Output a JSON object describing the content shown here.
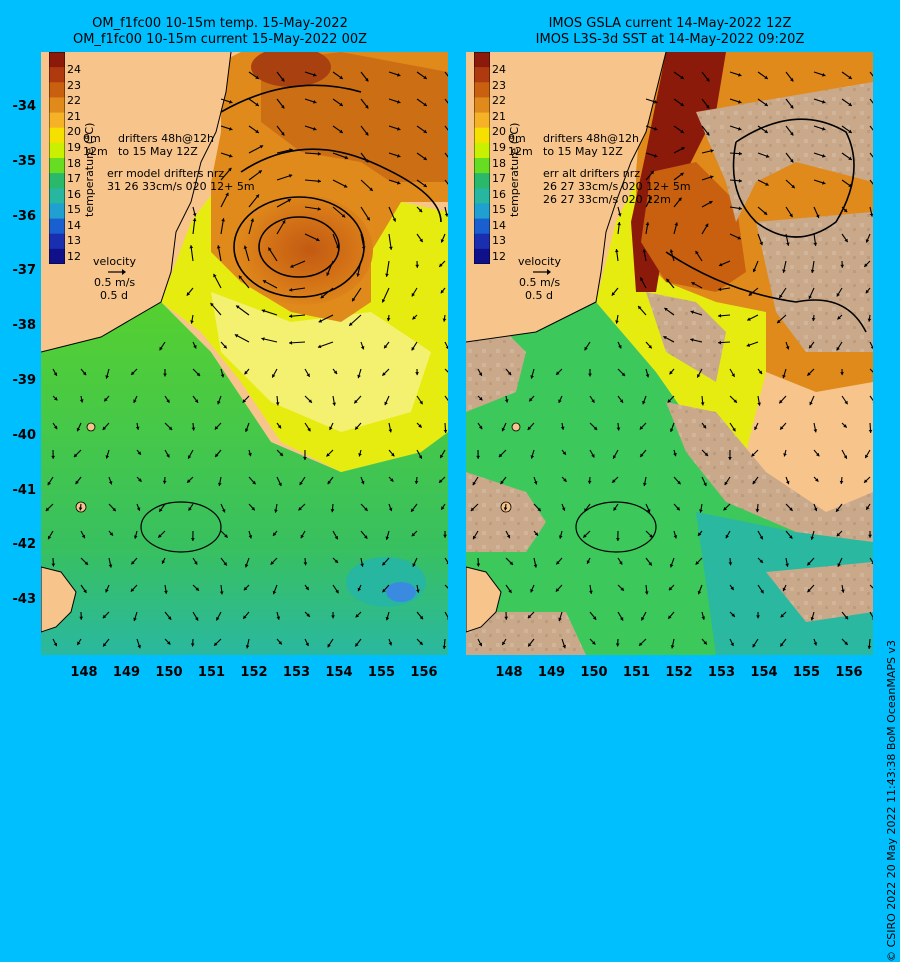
{
  "titles": {
    "left_line1": "OM_f1fc00 10-15m temp. 15-May-2022",
    "left_line2": "OM_f1fc00 10-15m current 15-May-2022 00Z",
    "right_line1": "IMOS GSLA current 14-May-2022 12Z",
    "right_line2": "IMOS L3S-3d SST at 14-May-2022 09:20Z"
  },
  "y_axis_labels": [
    "-34",
    "-35",
    "-36",
    "-37",
    "-38",
    "-39",
    "-40",
    "-41",
    "-42",
    "-43"
  ],
  "x_axis_labels": [
    "148",
    "149",
    "150",
    "151",
    "152",
    "153",
    "154",
    "155",
    "156"
  ],
  "colorbar": {
    "labels": [
      "24",
      "23",
      "22",
      "21",
      "20",
      "19",
      "18",
      "17",
      "16",
      "15",
      "14",
      "13",
      "12"
    ],
    "title": "temperature (°C)",
    "colors": [
      "#8b1a0a",
      "#b03a10",
      "#c8600f",
      "#e08a1c",
      "#f5b226",
      "#f6e000",
      "#c8f000",
      "#66dd22",
      "#2ab86a",
      "#27b7a0",
      "#1fa0d0",
      "#1a5fd0",
      "#1a2fb0",
      "#10108a"
    ]
  },
  "left_notes": {
    "drifters_0m": "0m",
    "drifters_12m": "12m",
    "drifters_48h": "drifters 48h@12h",
    "drifters_to": "to 15 May 12Z",
    "err_line1": "err model drifters nrz",
    "err_line2": "31 26 33cm/s 020 12+ 5m"
  },
  "right_notes": {
    "drifters_0m": "0m",
    "drifters_12m": "12m",
    "drifters_48h": "drifters 48h@12h",
    "drifters_to": "to 15 May 12Z",
    "err_line1": "err alt drifters nrz",
    "err_line2": "26 27 33cm/s 020 12+ 5m",
    "err_line3": "26 27 33cm/s 020 12m"
  },
  "velocity_key": {
    "label": "velocity",
    "speed": "0.5 m/s",
    "duration": "0.5 d"
  },
  "credit": "© CSIRO 2022  20 May 2022 11:43:38 BoM OceanMAPS v3",
  "colors": {
    "background": "#00BFFF",
    "land": "#f7c58b",
    "nodata": "#c9a98a"
  }
}
